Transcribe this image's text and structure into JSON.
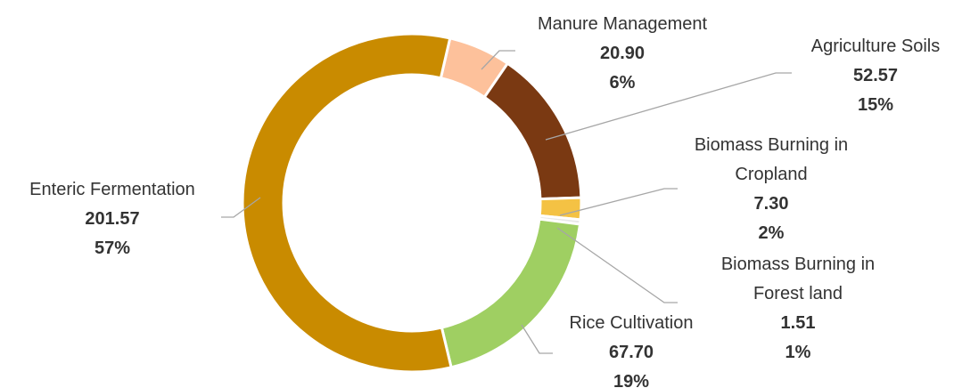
{
  "chart_data": {
    "type": "donut",
    "categories": [
      "Manure Management",
      "Agriculture Soils",
      "Biomass Burning in Cropland",
      "Biomass Burning in Forest land",
      "Rice Cultivation",
      "Enteric Fermentation"
    ],
    "values": [
      20.9,
      52.57,
      7.3,
      1.51,
      67.7,
      201.57
    ],
    "value_labels": [
      "20.90",
      "52.57",
      "7.30",
      "1.51",
      "67.70",
      "201.57"
    ],
    "percentage_labels": [
      "6%",
      "15%",
      "2%",
      "1%",
      "19%",
      "57%"
    ],
    "colors": [
      "#fdc19b",
      "#7a3912",
      "#f4c244",
      "#e8e8e8",
      "#9fcf62",
      "#c98b00"
    ]
  }
}
